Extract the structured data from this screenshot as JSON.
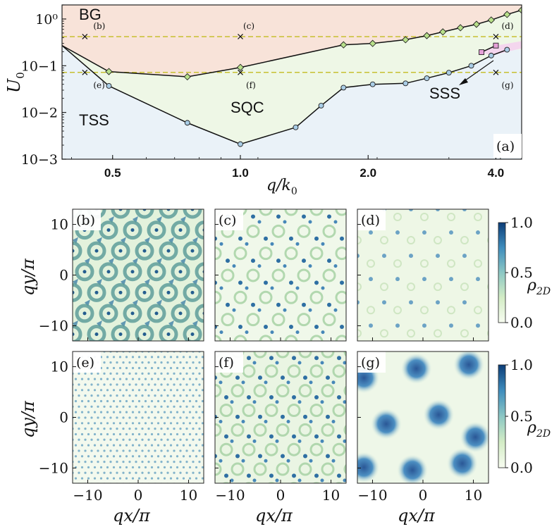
{
  "chart_data": [
    {
      "panel": "(a)",
      "type": "line",
      "x_scale": "log",
      "y_scale": "log",
      "xlim": [
        0.38,
        4.6
      ],
      "ylim": [
        0.001,
        2.0
      ],
      "xlabel": "q/k0",
      "ylabel": "U0",
      "xticks": [
        0.5,
        1.0,
        2.0,
        4.0
      ],
      "xtick_labels": [
        "0.5",
        "1.0",
        "2.0",
        "4.0"
      ],
      "yticks": [
        0.001,
        0.01,
        0.1,
        1.0
      ],
      "ytick_labels": [
        "10−3",
        "10−2",
        "10−1",
        "10⁰"
      ],
      "regions": [
        {
          "name": "BG",
          "label": "BG",
          "color": "#f8e3d9"
        },
        {
          "name": "SQC",
          "label": "SQC",
          "color": "#eef7e6"
        },
        {
          "name": "TSS",
          "label": "TSS",
          "color": "#eaf2f8"
        },
        {
          "name": "SSS",
          "label": "SSS",
          "color": "#f4d6ee"
        }
      ],
      "series": [
        {
          "name": "BG-SQC boundary",
          "marker": "diamond",
          "color": "#b8e08a",
          "x": [
            0.38,
            0.49,
            0.75,
            1.0,
            1.75,
            2.05,
            2.45,
            2.75,
            3.0,
            3.3,
            3.6,
            3.9,
            4.25,
            4.6
          ],
          "y": [
            0.27,
            0.075,
            0.058,
            0.092,
            0.28,
            0.3,
            0.36,
            0.44,
            0.53,
            0.65,
            0.77,
            0.95,
            1.25,
            1.55
          ]
        },
        {
          "name": "TSS-SQC boundary",
          "marker": "circle",
          "color": "#a9cde6",
          "x": [
            0.38,
            0.49,
            0.75,
            1.0,
            1.35,
            1.55,
            1.75,
            2.05,
            2.45,
            2.75,
            3.1,
            3.5,
            3.9,
            4.25
          ],
          "y": [
            0.27,
            0.037,
            0.006,
            0.0021,
            0.0048,
            0.014,
            0.034,
            0.04,
            0.042,
            0.054,
            0.071,
            0.1,
            0.165,
            0.22
          ]
        },
        {
          "name": "SSS boundary",
          "marker": "square",
          "color": "#e6a0d8",
          "x": [
            3.7,
            4.0
          ],
          "y": [
            0.195,
            0.27
          ]
        }
      ],
      "thresholds": [
        {
          "name": "upper dashed line",
          "y": 0.42,
          "color": "#c7c030"
        },
        {
          "name": "lower dashed line",
          "y": 0.072,
          "color": "#c7c030"
        }
      ],
      "sample_points": [
        {
          "label": "(b)",
          "x": 0.43,
          "y": 0.42
        },
        {
          "label": "(c)",
          "x": 1.0,
          "y": 0.42
        },
        {
          "label": "(d)",
          "x": 4.0,
          "y": 0.42
        },
        {
          "label": "(e)",
          "x": 0.43,
          "y": 0.072
        },
        {
          "label": "(f)",
          "x": 1.0,
          "y": 0.072
        },
        {
          "label": "(g)",
          "x": 4.0,
          "y": 0.072
        }
      ],
      "annotations": [
        "SSS",
        "(a)"
      ]
    },
    {
      "panel": "density maps",
      "type": "heatmap",
      "xlabel": "qx/π",
      "ylabel": "qy/π",
      "xlim": [
        -13,
        13
      ],
      "ylim": [
        -13,
        13
      ],
      "ticks": [
        -10,
        0,
        10
      ],
      "tick_labels": [
        "−10",
        "0",
        "10"
      ],
      "colorbar": {
        "label": "ρ2D",
        "ticks": [
          0.0,
          0.5,
          1.0
        ],
        "tick_labels": [
          "0.0",
          "0.5",
          "1.0"
        ]
      },
      "panels": [
        "(b)",
        "(c)",
        "(d)",
        "(e)",
        "(f)",
        "(g)"
      ]
    }
  ],
  "text": {
    "axis_y_main": "U",
    "axis_y_sub": "0",
    "axis_x_main": "q/k",
    "axis_x_sub": "0",
    "heat_y_label": "qy/π",
    "heat_x_label": "qx/π",
    "cbar_main": "ρ",
    "cbar_sub": "2D"
  }
}
